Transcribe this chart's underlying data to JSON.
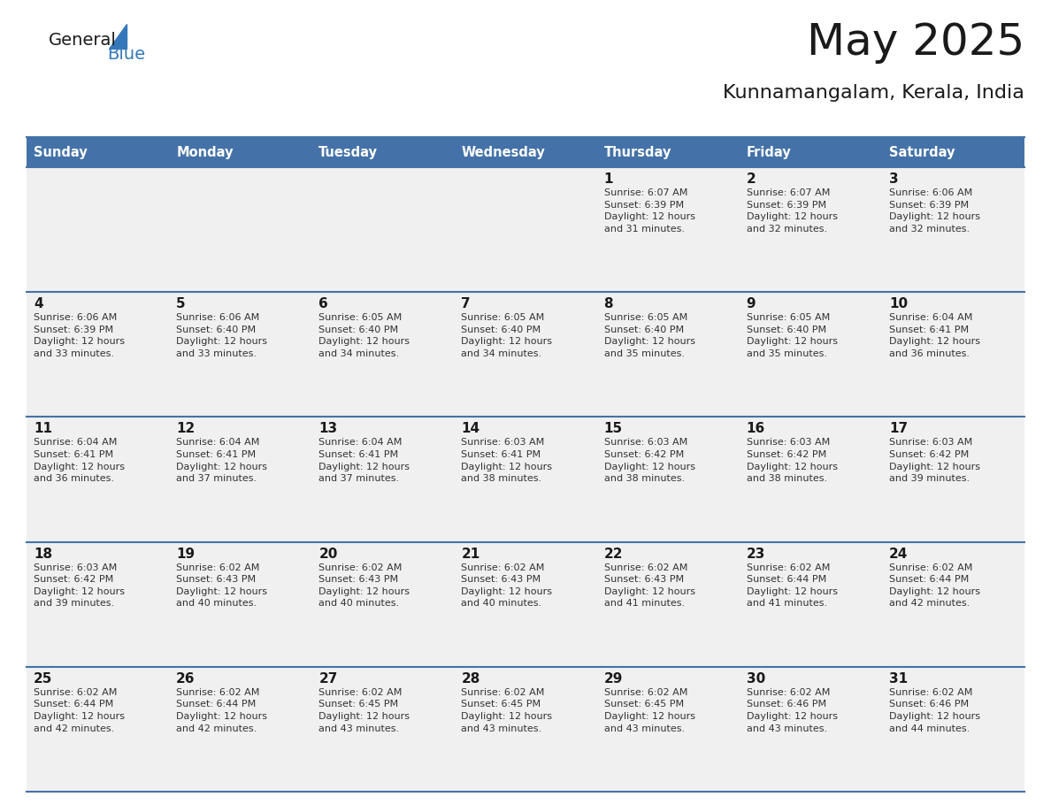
{
  "title": "May 2025",
  "subtitle": "Kunnamangalam, Kerala, India",
  "header_bg_color": "#4472A8",
  "header_text_color": "#FFFFFF",
  "row_bg_color": "#F0F0F0",
  "day_headers": [
    "Sunday",
    "Monday",
    "Tuesday",
    "Wednesday",
    "Thursday",
    "Friday",
    "Saturday"
  ],
  "weeks": [
    [
      {
        "day": "",
        "info": ""
      },
      {
        "day": "",
        "info": ""
      },
      {
        "day": "",
        "info": ""
      },
      {
        "day": "",
        "info": ""
      },
      {
        "day": "1",
        "info": "Sunrise: 6:07 AM\nSunset: 6:39 PM\nDaylight: 12 hours\nand 31 minutes."
      },
      {
        "day": "2",
        "info": "Sunrise: 6:07 AM\nSunset: 6:39 PM\nDaylight: 12 hours\nand 32 minutes."
      },
      {
        "day": "3",
        "info": "Sunrise: 6:06 AM\nSunset: 6:39 PM\nDaylight: 12 hours\nand 32 minutes."
      }
    ],
    [
      {
        "day": "4",
        "info": "Sunrise: 6:06 AM\nSunset: 6:39 PM\nDaylight: 12 hours\nand 33 minutes."
      },
      {
        "day": "5",
        "info": "Sunrise: 6:06 AM\nSunset: 6:40 PM\nDaylight: 12 hours\nand 33 minutes."
      },
      {
        "day": "6",
        "info": "Sunrise: 6:05 AM\nSunset: 6:40 PM\nDaylight: 12 hours\nand 34 minutes."
      },
      {
        "day": "7",
        "info": "Sunrise: 6:05 AM\nSunset: 6:40 PM\nDaylight: 12 hours\nand 34 minutes."
      },
      {
        "day": "8",
        "info": "Sunrise: 6:05 AM\nSunset: 6:40 PM\nDaylight: 12 hours\nand 35 minutes."
      },
      {
        "day": "9",
        "info": "Sunrise: 6:05 AM\nSunset: 6:40 PM\nDaylight: 12 hours\nand 35 minutes."
      },
      {
        "day": "10",
        "info": "Sunrise: 6:04 AM\nSunset: 6:41 PM\nDaylight: 12 hours\nand 36 minutes."
      }
    ],
    [
      {
        "day": "11",
        "info": "Sunrise: 6:04 AM\nSunset: 6:41 PM\nDaylight: 12 hours\nand 36 minutes."
      },
      {
        "day": "12",
        "info": "Sunrise: 6:04 AM\nSunset: 6:41 PM\nDaylight: 12 hours\nand 37 minutes."
      },
      {
        "day": "13",
        "info": "Sunrise: 6:04 AM\nSunset: 6:41 PM\nDaylight: 12 hours\nand 37 minutes."
      },
      {
        "day": "14",
        "info": "Sunrise: 6:03 AM\nSunset: 6:41 PM\nDaylight: 12 hours\nand 38 minutes."
      },
      {
        "day": "15",
        "info": "Sunrise: 6:03 AM\nSunset: 6:42 PM\nDaylight: 12 hours\nand 38 minutes."
      },
      {
        "day": "16",
        "info": "Sunrise: 6:03 AM\nSunset: 6:42 PM\nDaylight: 12 hours\nand 38 minutes."
      },
      {
        "day": "17",
        "info": "Sunrise: 6:03 AM\nSunset: 6:42 PM\nDaylight: 12 hours\nand 39 minutes."
      }
    ],
    [
      {
        "day": "18",
        "info": "Sunrise: 6:03 AM\nSunset: 6:42 PM\nDaylight: 12 hours\nand 39 minutes."
      },
      {
        "day": "19",
        "info": "Sunrise: 6:02 AM\nSunset: 6:43 PM\nDaylight: 12 hours\nand 40 minutes."
      },
      {
        "day": "20",
        "info": "Sunrise: 6:02 AM\nSunset: 6:43 PM\nDaylight: 12 hours\nand 40 minutes."
      },
      {
        "day": "21",
        "info": "Sunrise: 6:02 AM\nSunset: 6:43 PM\nDaylight: 12 hours\nand 40 minutes."
      },
      {
        "day": "22",
        "info": "Sunrise: 6:02 AM\nSunset: 6:43 PM\nDaylight: 12 hours\nand 41 minutes."
      },
      {
        "day": "23",
        "info": "Sunrise: 6:02 AM\nSunset: 6:44 PM\nDaylight: 12 hours\nand 41 minutes."
      },
      {
        "day": "24",
        "info": "Sunrise: 6:02 AM\nSunset: 6:44 PM\nDaylight: 12 hours\nand 42 minutes."
      }
    ],
    [
      {
        "day": "25",
        "info": "Sunrise: 6:02 AM\nSunset: 6:44 PM\nDaylight: 12 hours\nand 42 minutes."
      },
      {
        "day": "26",
        "info": "Sunrise: 6:02 AM\nSunset: 6:44 PM\nDaylight: 12 hours\nand 42 minutes."
      },
      {
        "day": "27",
        "info": "Sunrise: 6:02 AM\nSunset: 6:45 PM\nDaylight: 12 hours\nand 43 minutes."
      },
      {
        "day": "28",
        "info": "Sunrise: 6:02 AM\nSunset: 6:45 PM\nDaylight: 12 hours\nand 43 minutes."
      },
      {
        "day": "29",
        "info": "Sunrise: 6:02 AM\nSunset: 6:45 PM\nDaylight: 12 hours\nand 43 minutes."
      },
      {
        "day": "30",
        "info": "Sunrise: 6:02 AM\nSunset: 6:46 PM\nDaylight: 12 hours\nand 43 minutes."
      },
      {
        "day": "31",
        "info": "Sunrise: 6:02 AM\nSunset: 6:46 PM\nDaylight: 12 hours\nand 44 minutes."
      }
    ]
  ],
  "logo_text_general": "General",
  "logo_text_blue": "Blue",
  "logo_color_general": "#1a1a1a",
  "logo_color_blue": "#3578B9",
  "logo_triangle_color": "#3578B9",
  "title_color": "#1a1a1a",
  "subtitle_color": "#1a1a1a",
  "cell_text_color": "#333333",
  "day_num_color": "#1a1a1a",
  "divider_color": "#4472A8"
}
